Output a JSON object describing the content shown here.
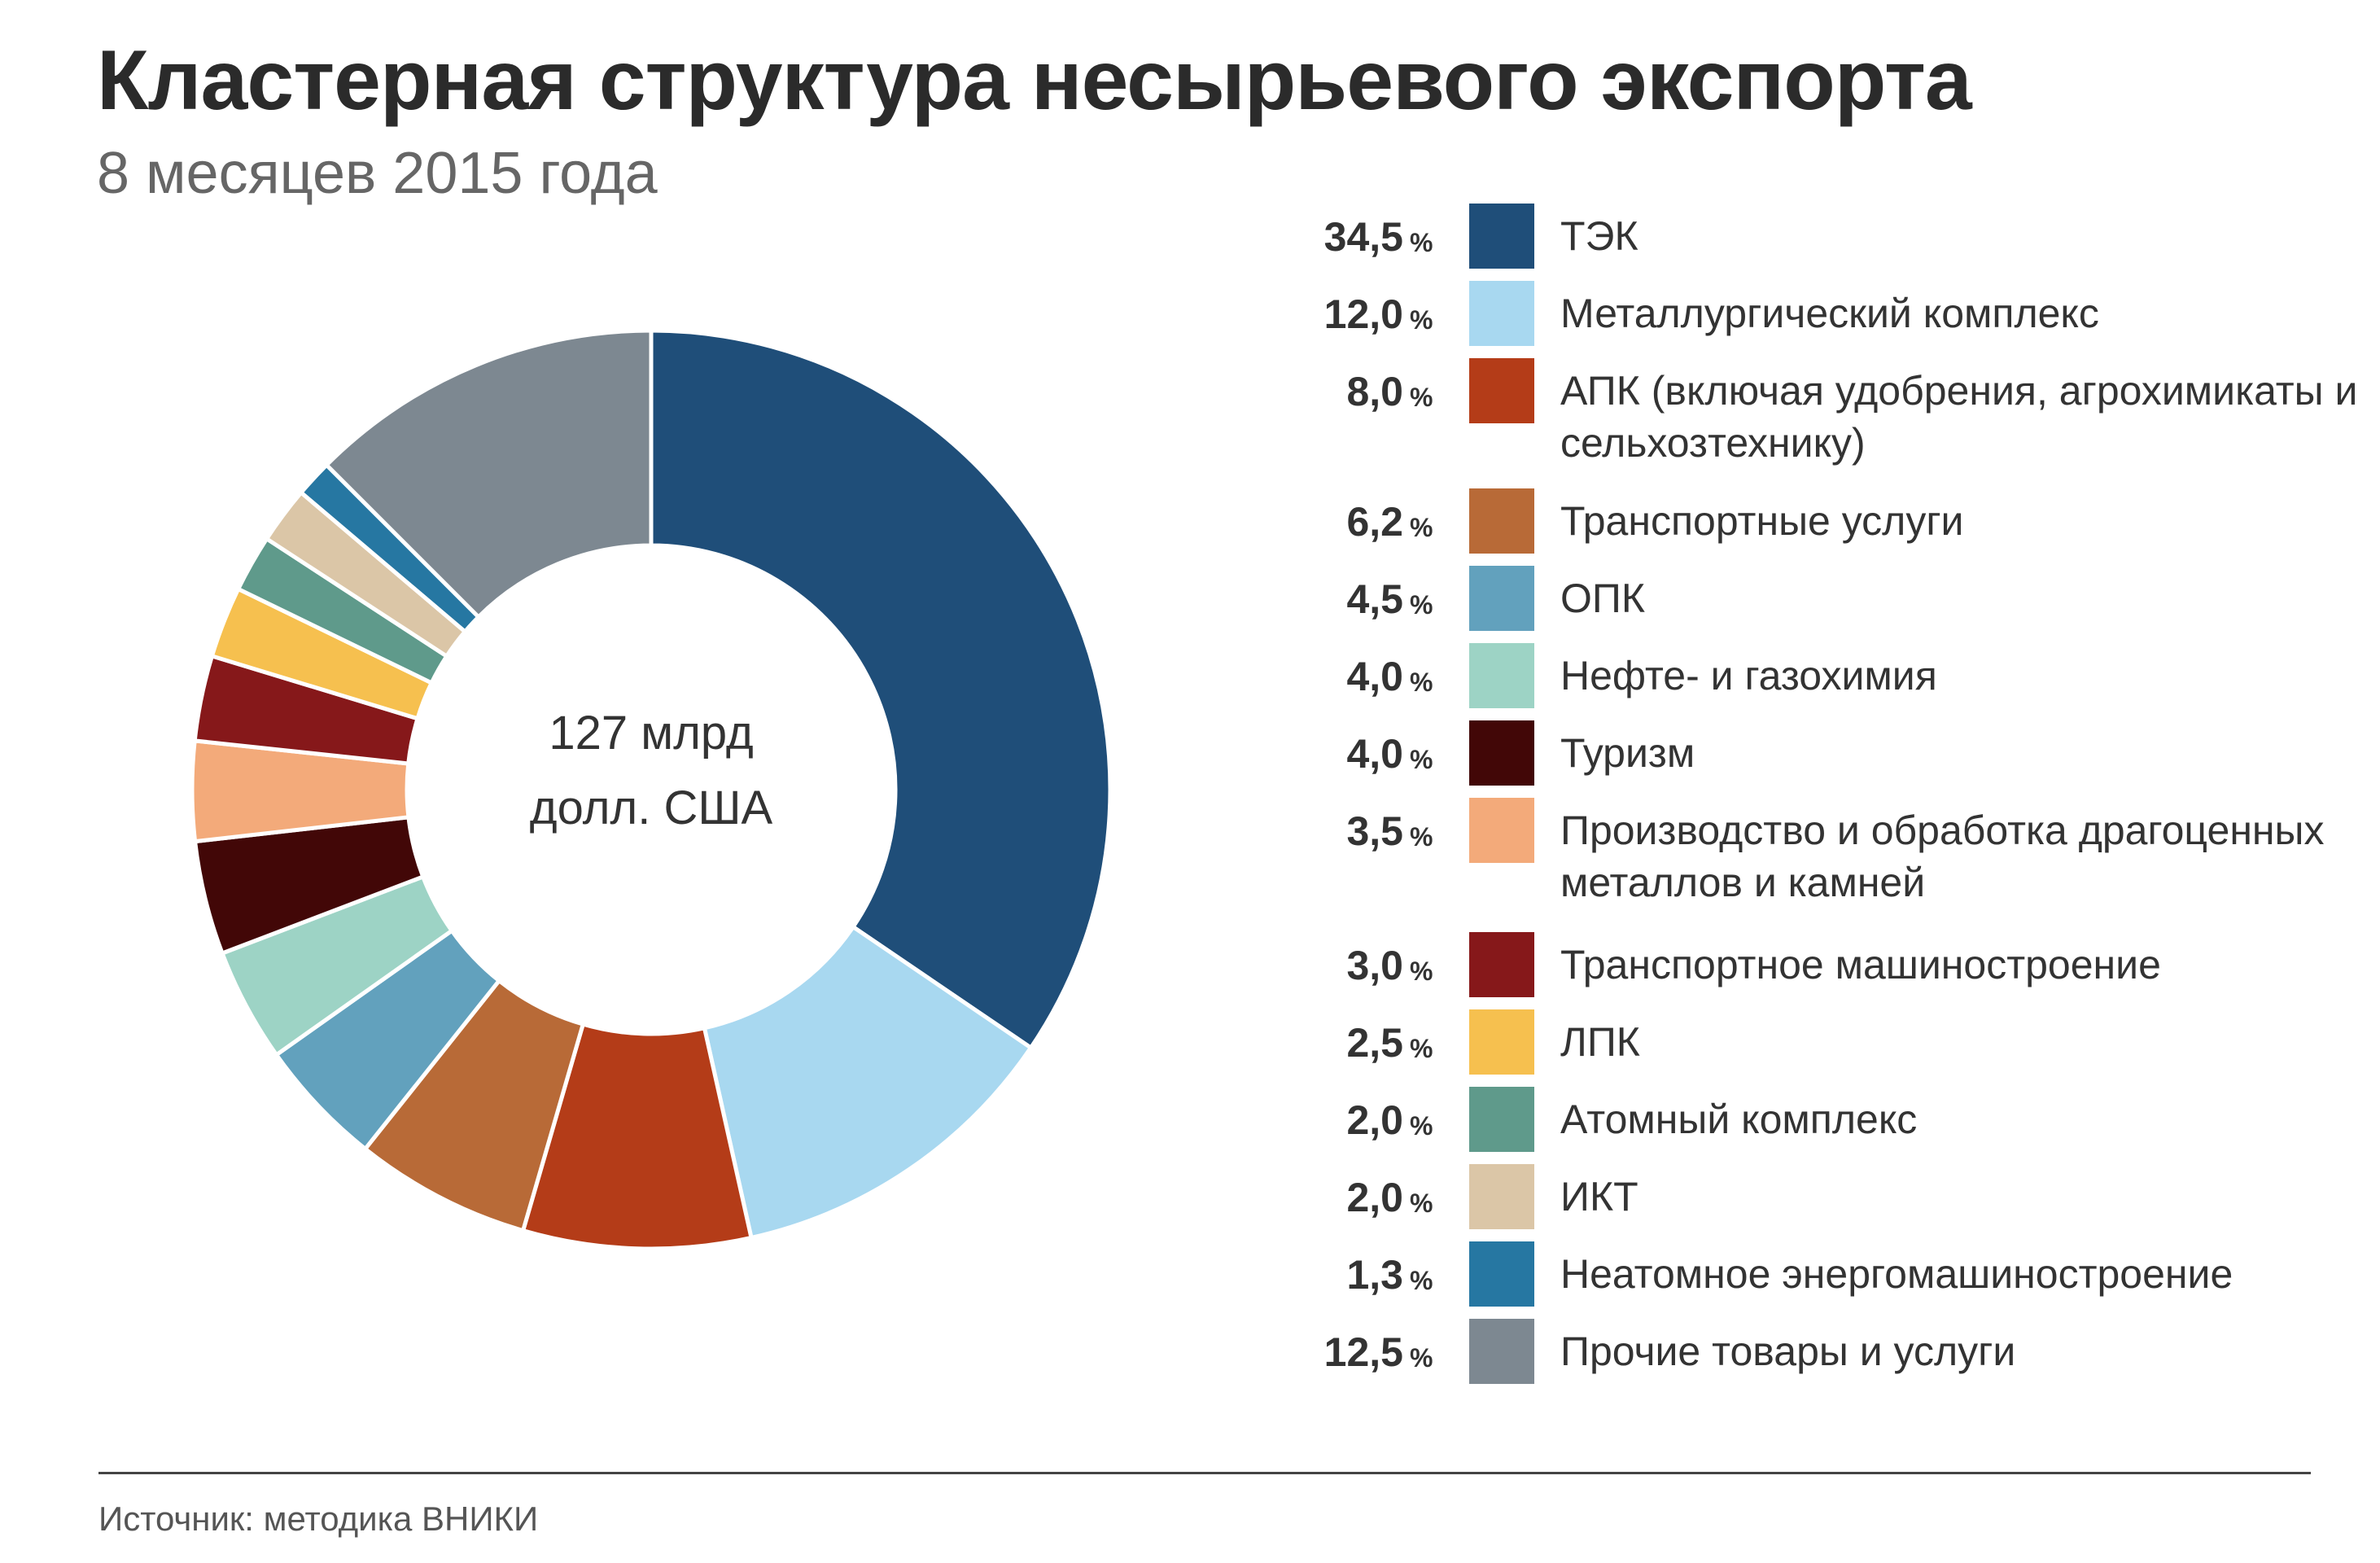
{
  "header": {
    "title": "Кластерная структура несырьевого экспорта",
    "subtitle": "8 месяцев 2015 года"
  },
  "center": {
    "line1": "127 млрд",
    "line2": "долл. США"
  },
  "percent_sign": "%",
  "footer": {
    "source": "Источник: методика ВНИКИ"
  },
  "chart_data": {
    "type": "pie",
    "variant": "donut",
    "title": "Кластерная структура несырьевого экспорта",
    "subtitle": "8 месяцев 2015 года",
    "total_label": "127 млрд долл. США",
    "legend_position": "right",
    "slices": [
      {
        "label": "ТЭК",
        "value": 34.5,
        "display": "34,5",
        "color": "#1f4e79"
      },
      {
        "label": "Металлургический комплекс",
        "value": 12.0,
        "display": "12,0",
        "color": "#a8d8f0"
      },
      {
        "label": "АПК (включая удобрения, агрохимикаты и сельхозтехнику)",
        "value": 8.0,
        "display": "8,0",
        "color": "#b43c18"
      },
      {
        "label": "Транспортные услуги",
        "value": 6.2,
        "display": "6,2",
        "color": "#b86a37"
      },
      {
        "label": "ОПК",
        "value": 4.5,
        "display": "4,5",
        "color": "#62a1bd"
      },
      {
        "label": "Нефте- и газохимия",
        "value": 4.0,
        "display": "4,0",
        "color": "#9dd3c5"
      },
      {
        "label": "Туризм",
        "value": 4.0,
        "display": "4,0",
        "color": "#420707"
      },
      {
        "label": "Производство и обработка драгоценных металлов и камней",
        "value": 3.5,
        "display": "3,5",
        "color": "#f3aa7a"
      },
      {
        "label": "Транспортное машиностроение",
        "value": 3.0,
        "display": "3,0",
        "color": "#86181a"
      },
      {
        "label": "ЛПК",
        "value": 2.5,
        "display": "2,5",
        "color": "#f6c04f"
      },
      {
        "label": "Атомный комплекс",
        "value": 2.0,
        "display": "2,0",
        "color": "#5f9a8b"
      },
      {
        "label": "ИКТ",
        "value": 2.0,
        "display": "2,0",
        "color": "#dbc6a7"
      },
      {
        "label": "Неатомное энергомашиностроение",
        "value": 1.3,
        "display": "1,3",
        "color": "#2677a2"
      },
      {
        "label": "Прочие товары и услуги",
        "value": 12.5,
        "display": "12,5",
        "color": "#7d8891"
      }
    ]
  }
}
